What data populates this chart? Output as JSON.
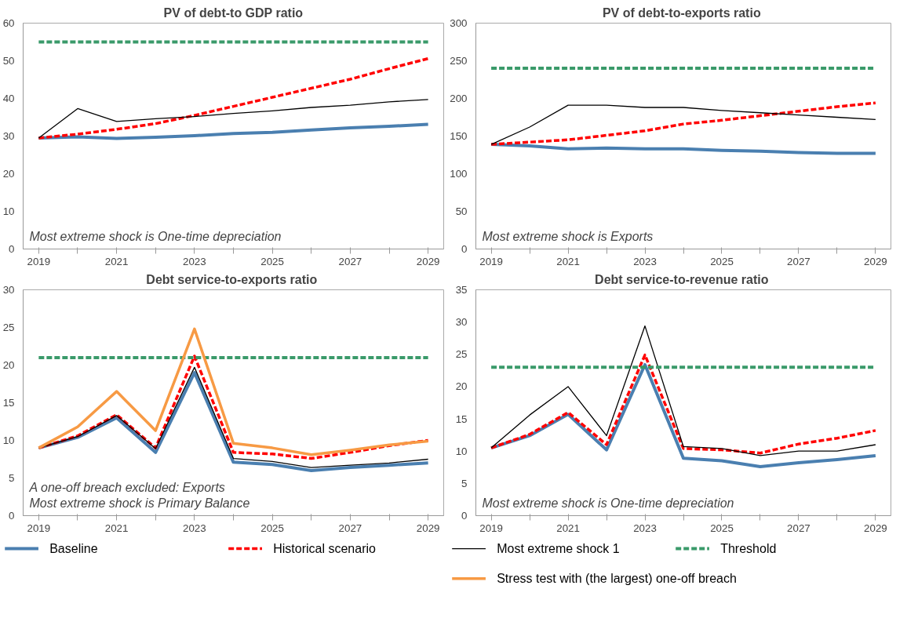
{
  "chart_data": [
    {
      "type": "line",
      "title": "PV of debt-to GDP ratio",
      "categories": [
        "2019",
        null,
        "2021",
        null,
        "2023",
        null,
        "2025",
        null,
        "2027",
        null,
        "2029"
      ],
      "ylim": [
        0,
        60
      ],
      "yticks": [
        0,
        10,
        20,
        30,
        40,
        50,
        60
      ],
      "grid": false,
      "legend": false,
      "annotations": [
        "Most extreme shock is One-time depreciation"
      ],
      "series": [
        {
          "color": "#4a7fb0",
          "line_style": "solid",
          "values": [
            29.5,
            29.8,
            29.4,
            29.7,
            30.1,
            30.7,
            31.0,
            31.6,
            32.2,
            32.6,
            33.1
          ]
        },
        {
          "color": "#ff0000",
          "line_style": "dashed",
          "values": [
            29.5,
            30.5,
            31.8,
            33.3,
            35.5,
            37.9,
            40.3,
            42.7,
            45.1,
            47.9,
            50.6
          ]
        },
        {
          "color": "#000000",
          "line_style": "solid",
          "values": [
            29.5,
            37.3,
            33.9,
            34.6,
            35.2,
            36.0,
            36.7,
            37.6,
            38.2,
            39.1,
            39.7
          ]
        },
        {
          "color": "#3a9a6a",
          "line_style": "dashed",
          "values": [
            55,
            55,
            55,
            55,
            55,
            55,
            55,
            55,
            55,
            55,
            55
          ]
        }
      ]
    },
    {
      "type": "line",
      "title": "PV of debt-to-exports  ratio",
      "categories": [
        "2019",
        null,
        "2021",
        null,
        "2023",
        null,
        "2025",
        null,
        "2027",
        null,
        "2029"
      ],
      "ylim": [
        0,
        300
      ],
      "yticks": [
        0,
        50,
        100,
        150,
        200,
        250,
        300
      ],
      "grid": false,
      "legend": false,
      "annotations": [
        "Most extreme  shock is Exports"
      ],
      "series": [
        {
          "color": "#4a7fb0",
          "line_style": "solid",
          "values": [
            139,
            137,
            133,
            134,
            133,
            133,
            131,
            130,
            128,
            127,
            127
          ]
        },
        {
          "color": "#ff0000",
          "line_style": "dashed",
          "values": [
            139,
            142,
            145,
            151,
            157,
            166,
            171,
            177,
            183,
            189,
            194
          ]
        },
        {
          "color": "#000000",
          "line_style": "solid",
          "values": [
            139,
            162,
            191,
            191,
            188,
            188,
            184,
            181,
            178,
            175,
            172
          ]
        },
        {
          "color": "#3a9a6a",
          "line_style": "dashed",
          "values": [
            240,
            240,
            240,
            240,
            240,
            240,
            240,
            240,
            240,
            240,
            240
          ]
        }
      ]
    },
    {
      "type": "line",
      "title": "Debt service-to-exports  ratio",
      "categories": [
        "2019",
        null,
        "2021",
        null,
        "2023",
        null,
        "2025",
        null,
        "2027",
        null,
        "2029"
      ],
      "ylim": [
        0,
        30
      ],
      "yticks": [
        0,
        5,
        10,
        15,
        20,
        25,
        30
      ],
      "grid": false,
      "legend": "bottom",
      "annotations": [
        "A one-off  breach  excluded:  Exports",
        "Most extreme  shock is Primary  Balance"
      ],
      "series": [
        {
          "name": "Baseline",
          "color": "#4a7fb0",
          "line_style": "solid",
          "values": [
            9.0,
            10.4,
            13.0,
            8.4,
            19.0,
            7.1,
            6.8,
            6.0,
            6.4,
            6.7,
            7.0
          ]
        },
        {
          "name": "Historical scenario",
          "color": "#ff0000",
          "line_style": "dashed",
          "values": [
            9.0,
            10.6,
            13.4,
            9.0,
            21.2,
            8.4,
            8.2,
            7.6,
            8.4,
            9.3,
            10.0
          ]
        },
        {
          "name": "Most extreme shock 1",
          "color": "#000000",
          "line_style": "solid",
          "values": [
            9.0,
            10.5,
            13.3,
            8.9,
            19.7,
            7.6,
            7.2,
            6.4,
            6.7,
            7.0,
            7.5
          ]
        },
        {
          "name": "Threshold",
          "color": "#3a9a6a",
          "line_style": "dashed",
          "values": [
            21,
            21,
            21,
            21,
            21,
            21,
            21,
            21,
            21,
            21,
            21
          ]
        },
        {
          "name": "Stress test with (the largest) one-off breach",
          "color": "#f79a44",
          "line_style": "solid",
          "values": [
            9.0,
            11.8,
            16.5,
            11.3,
            24.8,
            9.6,
            9.0,
            8.1,
            8.7,
            9.4,
            9.9
          ]
        }
      ]
    },
    {
      "type": "line",
      "title": "Debt service-to-revenue  ratio",
      "categories": [
        "2019",
        null,
        "2021",
        null,
        "2023",
        null,
        "2025",
        null,
        "2027",
        null,
        "2029"
      ],
      "ylim": [
        0,
        35
      ],
      "yticks": [
        0,
        5,
        10,
        15,
        20,
        25,
        30,
        35
      ],
      "grid": false,
      "legend": false,
      "annotations": [
        "Most extreme  shock is One-time  depreciation"
      ],
      "series": [
        {
          "color": "#4a7fb0",
          "line_style": "solid",
          "values": [
            10.5,
            12.4,
            15.7,
            10.2,
            23.4,
            8.9,
            8.5,
            7.6,
            8.2,
            8.7,
            9.3
          ]
        },
        {
          "color": "#ff0000",
          "line_style": "dashed",
          "values": [
            10.5,
            12.6,
            16.0,
            11.0,
            24.9,
            10.4,
            10.2,
            9.7,
            11.1,
            12.0,
            13.2
          ]
        },
        {
          "color": "#000000",
          "line_style": "solid",
          "values": [
            10.5,
            15.6,
            20.0,
            12.4,
            29.4,
            10.7,
            10.4,
            9.3,
            10.0,
            10.0,
            11.0
          ]
        },
        {
          "color": "#3a9a6a",
          "line_style": "dashed",
          "values": [
            23,
            23,
            23,
            23,
            23,
            23,
            23,
            23,
            23,
            23,
            23
          ]
        }
      ]
    }
  ]
}
